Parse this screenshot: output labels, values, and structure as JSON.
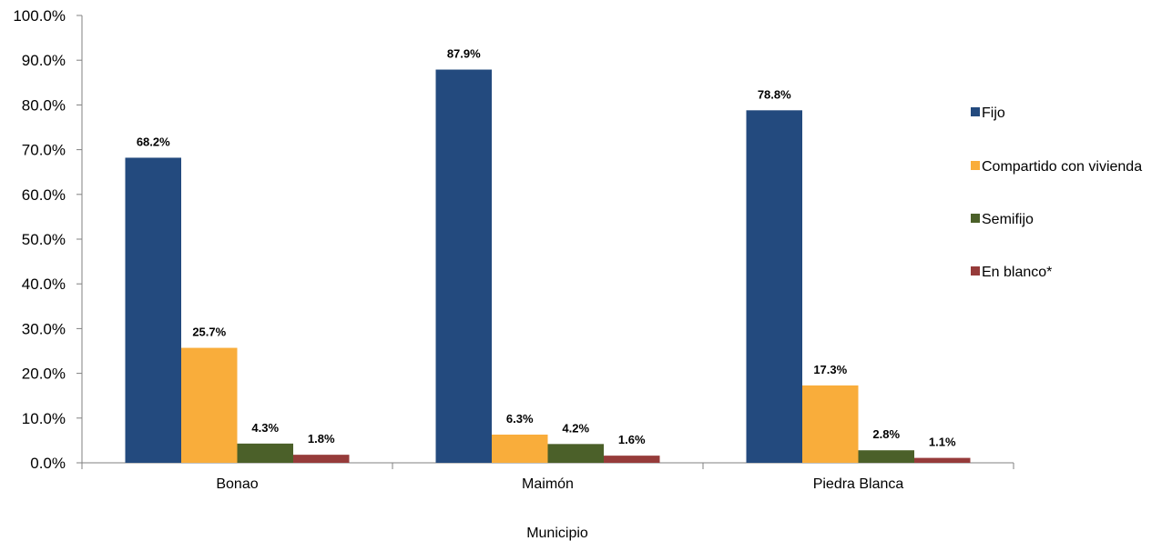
{
  "chart_data": {
    "type": "bar",
    "categories": [
      "Bonao",
      "Maimón",
      "Piedra Blanca"
    ],
    "series": [
      {
        "name": "Fijo",
        "values": [
          68.2,
          87.9,
          78.8
        ],
        "labels": [
          "68.2%",
          "87.9%",
          "78.8%"
        ],
        "color": "#234A7E"
      },
      {
        "name": "Compartido con vivienda",
        "values": [
          25.7,
          6.3,
          17.3
        ],
        "labels": [
          "25.7%",
          "6.3%",
          "17.3%"
        ],
        "color": "#F9AD3B"
      },
      {
        "name": "Semifijo",
        "values": [
          4.3,
          4.2,
          2.8
        ],
        "labels": [
          "4.3%",
          "4.2%",
          "2.8%"
        ],
        "color": "#4B6029"
      },
      {
        "name": "En blanco*",
        "values": [
          1.8,
          1.6,
          1.1
        ],
        "labels": [
          "1.8%",
          "1.6%",
          "1.1%"
        ],
        "color": "#963B3A"
      }
    ],
    "yticks": [
      "0.0%",
      "10.0%",
      "20.0%",
      "30.0%",
      "40.0%",
      "50.0%",
      "60.0%",
      "70.0%",
      "80.0%",
      "90.0%",
      "100.0%"
    ],
    "ylim": [
      0,
      100
    ],
    "xlabel": "Municipio",
    "ylabel": "",
    "title": "",
    "grid": false,
    "legend_position": "right"
  }
}
